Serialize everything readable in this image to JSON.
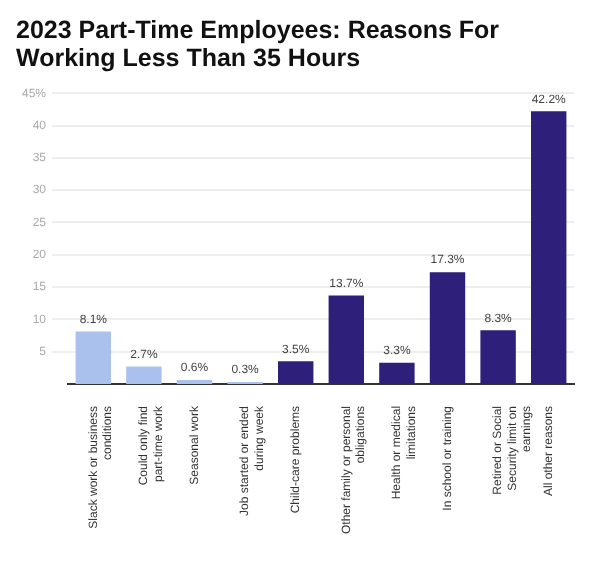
{
  "chart_data": {
    "type": "bar",
    "title": "2023 Part-Time Employees: Reasons For Working Less Than 35 Hours",
    "categories": [
      "Slack work or business conditions",
      "Could only find part-time work",
      "Seasonal work",
      "Job started or ended during week",
      "Child-care problems",
      "Other family or personal obligations",
      "Health or medical limitations",
      "In school or training",
      "Retired or Social Security limit on earnings",
      "All other reasons"
    ],
    "values": [
      8.1,
      2.7,
      0.6,
      0.3,
      3.5,
      13.7,
      3.3,
      17.3,
      8.3,
      42.2
    ],
    "value_labels": [
      "8.1%",
      "2.7%",
      "0.6%",
      "0.3%",
      "3.5%",
      "13.7%",
      "3.3%",
      "17.3%",
      "8.3%",
      "42.2%"
    ],
    "colors": [
      "#a9c1ec",
      "#a9c1ec",
      "#a9c1ec",
      "#a9c1ec",
      "#2e1f7a",
      "#2e1f7a",
      "#2e1f7a",
      "#2e1f7a",
      "#2e1f7a",
      "#2e1f7a"
    ],
    "ylim": [
      0,
      45
    ],
    "yticks": [
      5,
      10,
      15,
      20,
      25,
      30,
      35,
      40,
      {
        "value": 45,
        "label": "45%"
      }
    ],
    "grid": "y",
    "legend": false
  }
}
